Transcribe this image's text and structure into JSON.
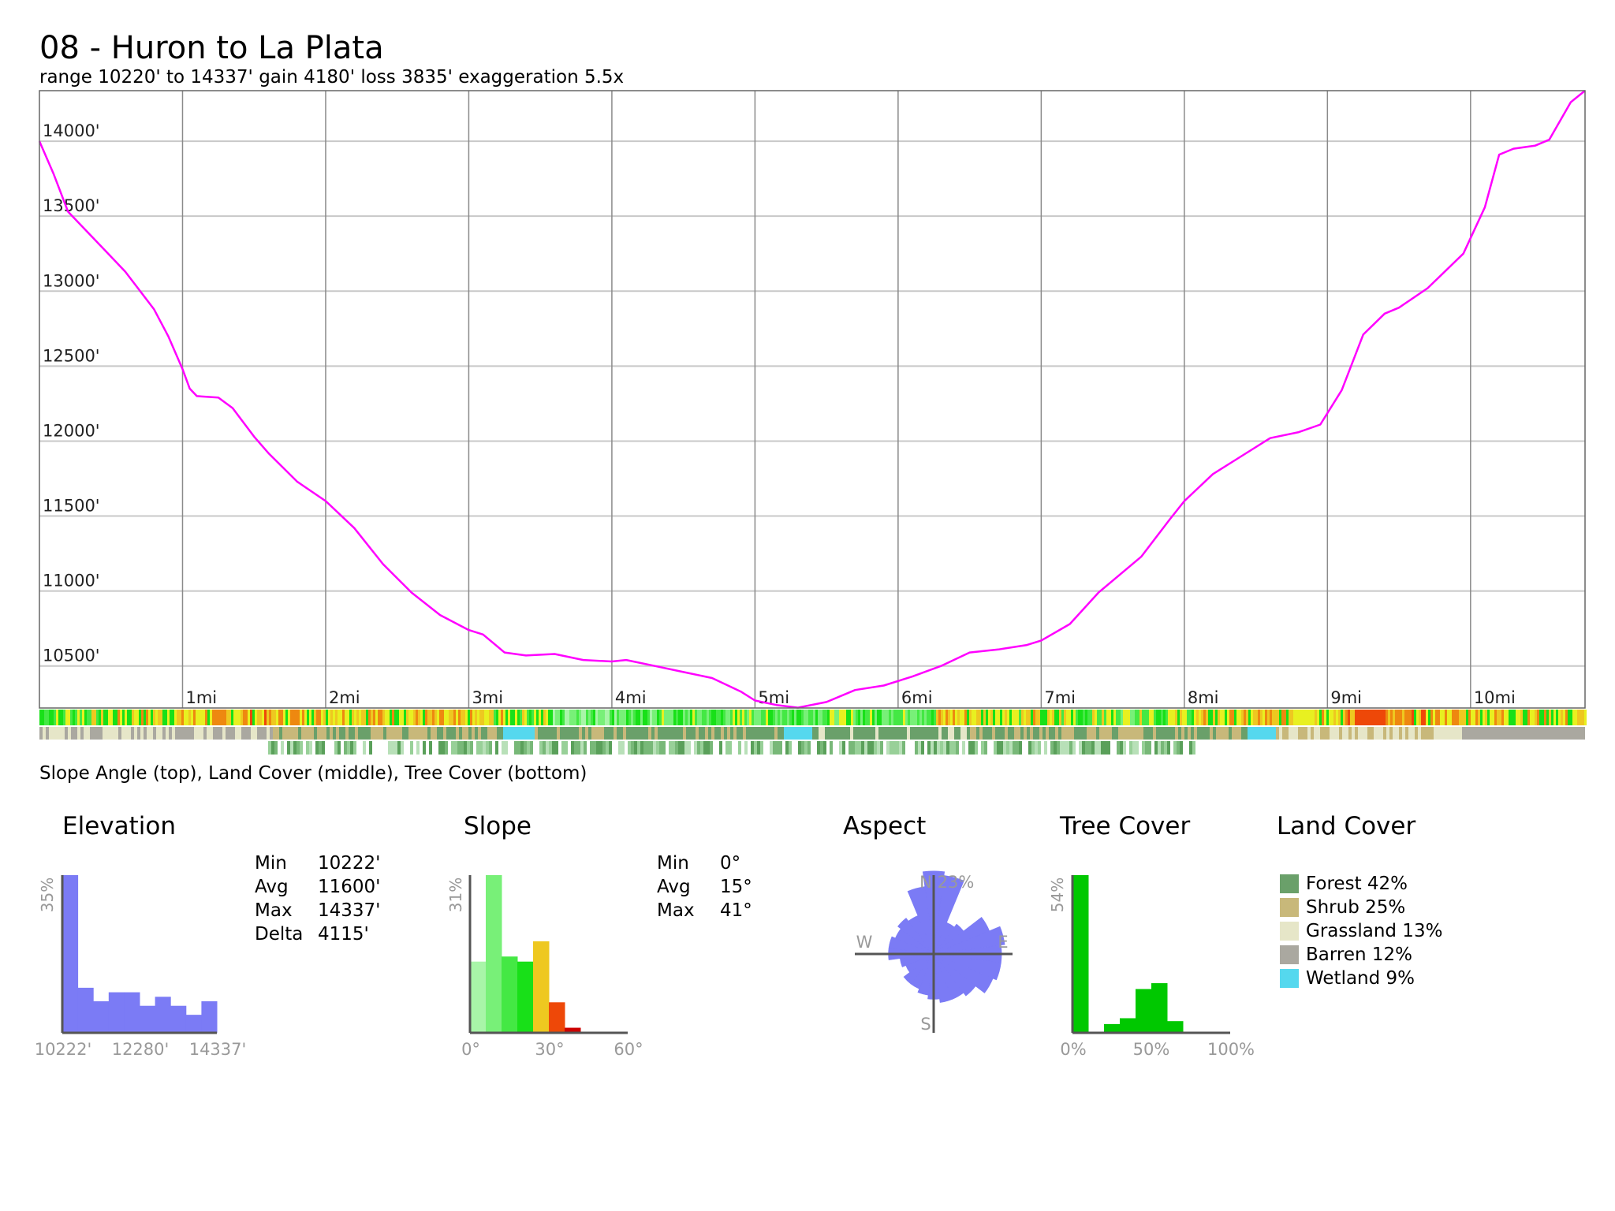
{
  "title": "08 - Huron to La Plata",
  "subtitle": "range 10220' to 14337'  gain 4180'  loss 3835'  exaggeration 5.5x",
  "strip_caption": "Slope Angle (top), Land Cover (middle), Tree Cover (bottom)",
  "colors": {
    "profile_line": "#ff00ff",
    "grid": "#8a8a8a",
    "histogram_blue": "#7b7bf5",
    "tree_green": "#00c800",
    "forest": "#6aa06a",
    "shrub": "#c8b87a",
    "grassland": "#e6e6c8",
    "barren": "#aaa8a0",
    "wetland": "#55d8ee"
  },
  "chart_data": [
    {
      "type": "line",
      "name": "elevation-profile",
      "x_unit": "mi",
      "y_unit": "ft",
      "xlim": [
        0,
        10.8
      ],
      "ylim": [
        10220,
        14337
      ],
      "yticks": [
        10500,
        11000,
        11500,
        12000,
        12500,
        13000,
        13500,
        14000
      ],
      "ytick_labels": [
        "10500'",
        "11000'",
        "11500'",
        "12000'",
        "12500'",
        "13000'",
        "13500'",
        "14000'"
      ],
      "xticks": [
        1,
        2,
        3,
        4,
        5,
        6,
        7,
        8,
        9,
        10
      ],
      "xtick_labels": [
        "1mi",
        "2mi",
        "3mi",
        "4mi",
        "5mi",
        "6mi",
        "7mi",
        "8mi",
        "9mi",
        "10mi"
      ],
      "grid": true,
      "points": [
        [
          0.0,
          14000
        ],
        [
          0.1,
          13780
        ],
        [
          0.2,
          13530
        ],
        [
          0.4,
          13330
        ],
        [
          0.6,
          13130
        ],
        [
          0.8,
          12880
        ],
        [
          0.9,
          12700
        ],
        [
          1.0,
          12480
        ],
        [
          1.05,
          12350
        ],
        [
          1.1,
          12300
        ],
        [
          1.25,
          12290
        ],
        [
          1.35,
          12220
        ],
        [
          1.5,
          12030
        ],
        [
          1.6,
          11920
        ],
        [
          1.8,
          11730
        ],
        [
          2.0,
          11600
        ],
        [
          2.2,
          11420
        ],
        [
          2.4,
          11180
        ],
        [
          2.6,
          10990
        ],
        [
          2.8,
          10840
        ],
        [
          3.0,
          10740
        ],
        [
          3.1,
          10710
        ],
        [
          3.25,
          10590
        ],
        [
          3.4,
          10570
        ],
        [
          3.6,
          10580
        ],
        [
          3.8,
          10540
        ],
        [
          4.0,
          10530
        ],
        [
          4.1,
          10540
        ],
        [
          4.3,
          10500
        ],
        [
          4.5,
          10460
        ],
        [
          4.7,
          10420
        ],
        [
          4.9,
          10330
        ],
        [
          5.0,
          10270
        ],
        [
          5.15,
          10240
        ],
        [
          5.3,
          10222
        ],
        [
          5.5,
          10260
        ],
        [
          5.7,
          10340
        ],
        [
          5.9,
          10370
        ],
        [
          6.1,
          10430
        ],
        [
          6.3,
          10500
        ],
        [
          6.5,
          10590
        ],
        [
          6.7,
          10610
        ],
        [
          6.9,
          10640
        ],
        [
          7.0,
          10670
        ],
        [
          7.2,
          10780
        ],
        [
          7.4,
          10990
        ],
        [
          7.7,
          11230
        ],
        [
          7.9,
          11480
        ],
        [
          8.0,
          11600
        ],
        [
          8.2,
          11780
        ],
        [
          8.4,
          11900
        ],
        [
          8.6,
          12020
        ],
        [
          8.8,
          12060
        ],
        [
          8.95,
          12110
        ],
        [
          9.1,
          12340
        ],
        [
          9.25,
          12710
        ],
        [
          9.4,
          12850
        ],
        [
          9.5,
          12890
        ],
        [
          9.7,
          13020
        ],
        [
          9.95,
          13250
        ],
        [
          10.1,
          13560
        ],
        [
          10.2,
          13910
        ],
        [
          10.3,
          13950
        ],
        [
          10.45,
          13970
        ],
        [
          10.55,
          14010
        ],
        [
          10.7,
          14260
        ],
        [
          10.8,
          14337
        ]
      ]
    },
    {
      "type": "bar",
      "name": "elevation-histogram",
      "title": "Elevation",
      "x_tick_labels": [
        "10222'",
        "12280'",
        "14337'"
      ],
      "y_max_label": "35%",
      "y_max": 35,
      "values": [
        35,
        10,
        7,
        9,
        9,
        6,
        8,
        6,
        4,
        7
      ],
      "color": "#7b7bf5",
      "stats": {
        "Min": "10222'",
        "Avg": "11600'",
        "Max": "14337'",
        "Delta": "4115'"
      }
    },
    {
      "type": "bar",
      "name": "slope-histogram",
      "title": "Slope",
      "x_tick_labels": [
        "0°",
        "30°",
        "60°"
      ],
      "y_max_label": "31%",
      "y_max": 31,
      "bin_width_deg": 6,
      "values": [
        14,
        31,
        15,
        14,
        18,
        6,
        1,
        0,
        0,
        0
      ],
      "colors": [
        "#a8f5a8",
        "#78f078",
        "#44e844",
        "#18e018",
        "#eec820",
        "#ee4808",
        "#cc0000",
        "#cc0000",
        "#cc0000",
        "#cc0000"
      ],
      "stats": {
        "Min": "0°",
        "Avg": "15°",
        "Max": "41°"
      }
    },
    {
      "type": "polar",
      "name": "aspect-rose",
      "title": "Aspect",
      "max_label": "23%",
      "direction_labels": [
        "N",
        "E",
        "S",
        "W"
      ],
      "sector_values": [
        22,
        21,
        9,
        10,
        16,
        19,
        18,
        18,
        17,
        14,
        13,
        13,
        12,
        11,
        10,
        10,
        8,
        9,
        12,
        12,
        11,
        12,
        11,
        18
      ],
      "color": "#7b7bf5"
    },
    {
      "type": "bar",
      "name": "tree-cover-histogram",
      "title": "Tree Cover",
      "x_tick_labels": [
        "0%",
        "50%",
        "100%"
      ],
      "y_max_label": "54%",
      "y_max": 54,
      "values": [
        54,
        0,
        3,
        5,
        15,
        17,
        4,
        0,
        0,
        0
      ],
      "color": "#00c800"
    },
    {
      "type": "pie",
      "name": "land-cover",
      "title": "Land Cover",
      "categories": [
        "Forest 42%",
        "Shrub 25%",
        "Grassland 13%",
        "Barren 12%",
        "Wetland 9%"
      ],
      "values": [
        42,
        25,
        13,
        12,
        9
      ],
      "colors": [
        "#6aa06a",
        "#c8b87a",
        "#e6e6c8",
        "#aaa8a0",
        "#55d8ee"
      ]
    }
  ]
}
